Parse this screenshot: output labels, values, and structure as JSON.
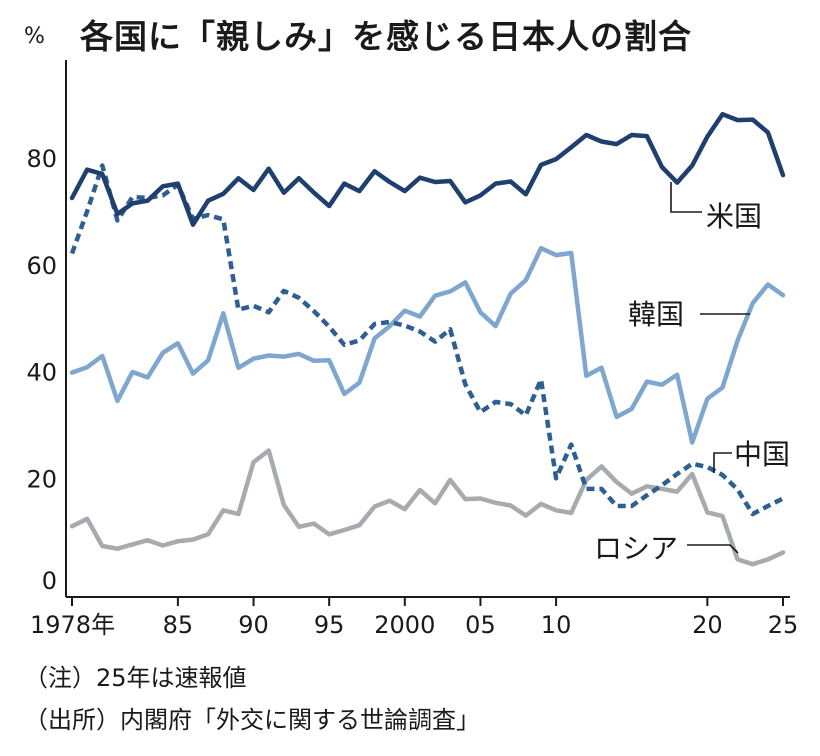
{
  "header": {
    "unit": "%",
    "title": "各国に「親しみ」を感じる日本人の割合"
  },
  "notes": {
    "note": "（注）25年は速報値",
    "source": "（出所）内閣府「外交に関する世論調査」"
  },
  "chart_data": {
    "type": "line",
    "title": "各国に「親しみ」を感じる日本人の割合",
    "ylabel": "%",
    "xlabel": "",
    "ylim": [
      0,
      95
    ],
    "xlim": [
      1978,
      2025
    ],
    "grid": false,
    "y_ticks": [
      {
        "value": 0,
        "label": "0"
      },
      {
        "value": 20,
        "label": "20"
      },
      {
        "value": 40,
        "label": "40"
      },
      {
        "value": 60,
        "label": "60"
      },
      {
        "value": 80,
        "label": "80"
      }
    ],
    "x_ticks": [
      {
        "value": 1978,
        "label": "1978年"
      },
      {
        "value": 1985,
        "label": "85"
      },
      {
        "value": 1990,
        "label": "90"
      },
      {
        "value": 1995,
        "label": "95"
      },
      {
        "value": 2000,
        "label": "2000"
      },
      {
        "value": 2005,
        "label": "05"
      },
      {
        "value": 2010,
        "label": "10"
      },
      {
        "value": 2020,
        "label": "20"
      },
      {
        "value": 2025,
        "label": "25"
      }
    ],
    "series": [
      {
        "name": "米国",
        "color": "#1f3f6e",
        "dashed": false,
        "x": [
          1978,
          1979,
          1980,
          1981,
          1982,
          1983,
          1984,
          1985,
          1986,
          1987,
          1988,
          1989,
          1990,
          1991,
          1992,
          1993,
          1994,
          1995,
          1996,
          1997,
          1998,
          1999,
          2000,
          2001,
          2002,
          2003,
          2004,
          2005,
          2006,
          2007,
          2008,
          2009,
          2010,
          2011,
          2012,
          2013,
          2014,
          2015,
          2016,
          2017,
          2018,
          2019,
          2020,
          2021,
          2022,
          2023,
          2024,
          2025
        ],
        "values": [
          72.5,
          77.8,
          77,
          69.5,
          71.5,
          72,
          74.7,
          75.2,
          67.5,
          72,
          73.3,
          76.2,
          74,
          78,
          73.5,
          76.2,
          73.5,
          71,
          75.2,
          73.8,
          77.5,
          75.5,
          73.8,
          76.3,
          75.5,
          75.7,
          71.7,
          73,
          75.2,
          75.6,
          73.2,
          78.7,
          79.8,
          82,
          84.3,
          83.1,
          82.6,
          84.3,
          84.1,
          78.3,
          75.4,
          78.6,
          84,
          88.2,
          87.1,
          87.2,
          84.8,
          76.8
        ]
      },
      {
        "name": "中国",
        "color": "#2e5f93",
        "dashed": true,
        "x": [
          1978,
          1979,
          1980,
          1981,
          1982,
          1983,
          1984,
          1985,
          1986,
          1987,
          1988,
          1989,
          1990,
          1991,
          1992,
          1993,
          1994,
          1995,
          1996,
          1997,
          1998,
          1999,
          2000,
          2001,
          2002,
          2003,
          2004,
          2005,
          2006,
          2007,
          2008,
          2009,
          2010,
          2011,
          2012,
          2013,
          2014,
          2015,
          2016,
          2017,
          2018,
          2019,
          2020,
          2021,
          2022,
          2023,
          2024,
          2025
        ],
        "values": [
          62.1,
          70,
          78.6,
          68.3,
          72.7,
          72.5,
          73,
          75,
          68.6,
          69.3,
          68.5,
          51.6,
          52.3,
          51.1,
          55.1,
          53.8,
          51.3,
          48.4,
          45,
          45.8,
          48.9,
          49.3,
          48.6,
          47.5,
          45.6,
          47.9,
          37.6,
          32.4,
          34.3,
          33.9,
          31.8,
          38.5,
          20,
          26.3,
          18,
          18,
          14.8,
          14.8,
          16.8,
          18.7,
          20.8,
          22.7,
          22.1,
          20.6,
          17.9,
          13.3,
          14.8,
          16.2
        ]
      },
      {
        "name": "韓国",
        "color": "#7ea6cf",
        "dashed": false,
        "x": [
          1978,
          1979,
          1980,
          1981,
          1982,
          1983,
          1984,
          1985,
          1986,
          1987,
          1988,
          1989,
          1990,
          1991,
          1992,
          1993,
          1994,
          1995,
          1996,
          1997,
          1998,
          1999,
          2000,
          2001,
          2002,
          2003,
          2004,
          2005,
          2006,
          2007,
          2008,
          2009,
          2010,
          2011,
          2012,
          2013,
          2014,
          2015,
          2016,
          2017,
          2018,
          2019,
          2020,
          2021,
          2022,
          2023,
          2024,
          2025
        ],
        "values": [
          39.8,
          40.8,
          42.9,
          34.5,
          39.9,
          38.9,
          43.5,
          45.3,
          39.6,
          42.1,
          50.9,
          40.7,
          42.4,
          43,
          42.8,
          43.3,
          42,
          42.1,
          35.8,
          37.9,
          46.2,
          48.5,
          51.4,
          50.3,
          54.2,
          55,
          56.7,
          51.1,
          48.5,
          54.6,
          57.1,
          63.1,
          61.8,
          62.2,
          39.2,
          40.7,
          31.5,
          33,
          38.1,
          37.5,
          39.4,
          26.7,
          34.9,
          37,
          45.8,
          52.8,
          56.3,
          54.3
        ]
      },
      {
        "name": "ロシア",
        "color": "#a7abaf",
        "dashed": false,
        "x": [
          1978,
          1979,
          1980,
          1981,
          1982,
          1983,
          1984,
          1985,
          1986,
          1987,
          1988,
          1989,
          1990,
          1991,
          1992,
          1993,
          1994,
          1995,
          1996,
          1997,
          1998,
          1999,
          2000,
          2001,
          2002,
          2003,
          2004,
          2005,
          2006,
          2007,
          2008,
          2009,
          2010,
          2011,
          2012,
          2013,
          2014,
          2015,
          2016,
          2017,
          2018,
          2019,
          2020,
          2021,
          2022,
          2023,
          2024,
          2025
        ],
        "values": [
          11,
          12.4,
          7.3,
          6.8,
          7.6,
          8.4,
          7.4,
          8.2,
          8.5,
          9.5,
          14,
          13.3,
          23,
          25.2,
          15,
          10.9,
          11.5,
          9.5,
          10.3,
          11.2,
          14.7,
          15.8,
          14.2,
          17.8,
          15.3,
          19.7,
          16.1,
          16.2,
          15.4,
          14.9,
          13,
          15.2,
          14,
          13.5,
          19.7,
          22.2,
          19.3,
          17.1,
          18.5,
          18,
          17.5,
          20.8,
          13.6,
          12.9,
          4.8,
          3.9,
          4.8,
          6.1
        ]
      }
    ],
    "series_labels": [
      {
        "series": "米国",
        "label": "米国"
      },
      {
        "series": "韓国",
        "label": "韓国"
      },
      {
        "series": "中国",
        "label": "中国"
      },
      {
        "series": "ロシア",
        "label": "ロシア"
      }
    ]
  }
}
